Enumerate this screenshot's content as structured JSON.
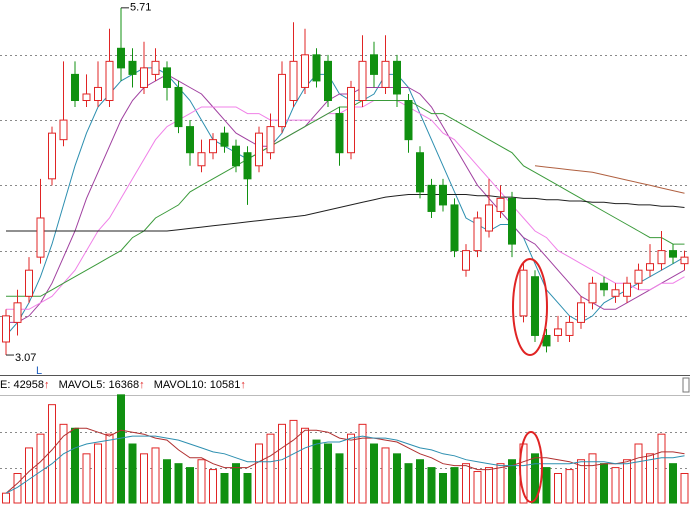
{
  "chart_data": [
    {
      "type": "candlestick",
      "up_color": "#e02424",
      "down_color": "#109010",
      "open": [
        3.15,
        3.3,
        3.5,
        3.8,
        4.4,
        4.7,
        5.2,
        5.0,
        5.0,
        5.0,
        5.4,
        5.3,
        5.1,
        5.2,
        5.25,
        5.1,
        4.8,
        4.5,
        4.6,
        4.75,
        4.65,
        4.6,
        4.5,
        4.6,
        4.8,
        5.0,
        5.1,
        5.35,
        5.3,
        4.9,
        4.6,
        5.0,
        5.35,
        5.1,
        5.3,
        5.0,
        4.6,
        4.35,
        4.35,
        4.2,
        3.7,
        3.85,
        4.0,
        4.15,
        4.25,
        3.35,
        3.65,
        3.2,
        3.2,
        3.2,
        3.3,
        3.45,
        3.6,
        3.5,
        3.5,
        3.6,
        3.7,
        3.75,
        3.85,
        3.75
      ],
      "high": [
        3.4,
        3.55,
        3.8,
        4.4,
        4.8,
        5.3,
        5.3,
        5.2,
        5.3,
        5.55,
        5.71,
        5.4,
        5.45,
        5.4,
        5.3,
        5.15,
        4.85,
        4.7,
        4.75,
        4.8,
        4.7,
        4.65,
        4.8,
        4.9,
        5.3,
        5.6,
        5.55,
        5.4,
        5.35,
        4.95,
        5.15,
        5.5,
        5.45,
        5.5,
        5.35,
        5.05,
        4.65,
        4.4,
        4.4,
        4.25,
        3.9,
        4.15,
        4.4,
        4.35,
        4.3,
        3.75,
        3.7,
        3.25,
        3.35,
        3.35,
        3.5,
        3.65,
        3.65,
        3.6,
        3.65,
        3.75,
        3.9,
        4.0,
        3.9,
        3.85
      ],
      "low": [
        3.05,
        3.2,
        3.45,
        3.75,
        4.35,
        4.65,
        4.95,
        4.95,
        4.95,
        4.95,
        5.15,
        5.1,
        5.05,
        5.15,
        5.0,
        4.75,
        4.5,
        4.45,
        4.55,
        4.6,
        4.45,
        4.2,
        4.45,
        4.55,
        4.75,
        4.95,
        5.05,
        5.1,
        4.95,
        4.5,
        4.55,
        4.95,
        5.1,
        5.05,
        4.95,
        4.6,
        4.25,
        4.1,
        4.15,
        3.8,
        3.65,
        3.8,
        3.95,
        4.1,
        3.8,
        3.3,
        3.15,
        3.07,
        3.15,
        3.15,
        3.25,
        3.4,
        3.5,
        3.45,
        3.45,
        3.55,
        3.65,
        3.7,
        3.75,
        3.7
      ],
      "close": [
        3.35,
        3.45,
        3.7,
        4.1,
        4.75,
        4.85,
        5.0,
        5.05,
        5.1,
        5.3,
        5.25,
        5.2,
        5.25,
        5.3,
        5.1,
        4.8,
        4.6,
        4.6,
        4.7,
        4.65,
        4.5,
        4.4,
        4.75,
        4.8,
        5.2,
        5.3,
        5.35,
        5.15,
        5.0,
        4.6,
        5.1,
        5.3,
        5.2,
        5.3,
        5.05,
        4.7,
        4.3,
        4.15,
        4.2,
        3.85,
        3.85,
        4.1,
        4.2,
        4.25,
        3.9,
        3.7,
        3.2,
        3.12,
        3.25,
        3.3,
        3.45,
        3.6,
        3.55,
        3.55,
        3.6,
        3.7,
        3.75,
        3.85,
        3.8,
        3.8
      ],
      "high_label": "5.71",
      "low_label": "3.07",
      "low_marker": "L",
      "series": [
        {
          "color": "#2d8fb0",
          "values": [
            3.2,
            3.3,
            3.45,
            3.65,
            3.9,
            4.2,
            4.5,
            4.75,
            4.95,
            5.05,
            5.15,
            5.2,
            5.25,
            5.25,
            5.2,
            5.1,
            5.0,
            4.85,
            4.7,
            4.65,
            4.6,
            4.55,
            4.6,
            4.65,
            4.75,
            4.95,
            5.1,
            5.2,
            5.2,
            5.05,
            5.0,
            5.0,
            5.05,
            5.2,
            5.2,
            5.1,
            4.9,
            4.7,
            4.5,
            4.3,
            4.1,
            4.05,
            4.0,
            4.05,
            4.05,
            3.95,
            3.75,
            3.55,
            3.45,
            3.35,
            3.3,
            3.35,
            3.45,
            3.5,
            3.55,
            3.6,
            3.65,
            3.7,
            3.75,
            3.8
          ]
        },
        {
          "color": "#a040a0",
          "values": [
            3.3,
            3.3,
            3.35,
            3.45,
            3.6,
            3.8,
            4.0,
            4.25,
            4.45,
            4.65,
            4.85,
            5.0,
            5.1,
            5.15,
            5.2,
            5.15,
            5.1,
            5.05,
            4.95,
            4.85,
            4.75,
            4.7,
            4.65,
            4.65,
            4.7,
            4.75,
            4.8,
            4.9,
            5.0,
            5.05,
            5.05,
            5.1,
            5.1,
            5.1,
            5.1,
            5.1,
            5.05,
            4.95,
            4.8,
            4.65,
            4.5,
            4.35,
            4.25,
            4.15,
            4.05,
            3.95,
            3.9,
            3.8,
            3.7,
            3.6,
            3.5,
            3.45,
            3.4,
            3.4,
            3.45,
            3.5,
            3.55,
            3.6,
            3.65,
            3.7
          ]
        },
        {
          "color": "#f080e8",
          "values": [
            3.4,
            3.4,
            3.4,
            3.45,
            3.5,
            3.6,
            3.7,
            3.85,
            4.0,
            4.1,
            4.25,
            4.4,
            4.55,
            4.7,
            4.8,
            4.85,
            4.9,
            4.95,
            4.95,
            4.95,
            4.95,
            4.9,
            4.9,
            4.85,
            4.85,
            4.85,
            4.85,
            4.85,
            4.9,
            4.9,
            4.95,
            4.95,
            5.0,
            5.0,
            5.0,
            4.95,
            4.9,
            4.85,
            4.75,
            4.7,
            4.6,
            4.5,
            4.4,
            4.3,
            4.2,
            4.1,
            4.0,
            3.95,
            3.85,
            3.8,
            3.75,
            3.7,
            3.65,
            3.6,
            3.6,
            3.55,
            3.55,
            3.6,
            3.6,
            3.65
          ]
        },
        {
          "color": "#3a9a3a",
          "values": [
            3.5,
            3.5,
            3.5,
            3.5,
            3.55,
            3.6,
            3.65,
            3.7,
            3.75,
            3.8,
            3.85,
            3.95,
            4.0,
            4.1,
            4.15,
            4.2,
            4.3,
            4.35,
            4.4,
            4.45,
            4.5,
            4.55,
            4.6,
            4.65,
            4.7,
            4.75,
            4.8,
            4.85,
            4.9,
            4.95,
            4.95,
            5.0,
            5.0,
            5.0,
            5.0,
            5.0,
            4.95,
            4.9,
            4.9,
            4.85,
            4.8,
            4.75,
            4.7,
            4.65,
            4.6,
            4.5,
            4.45,
            4.4,
            4.35,
            4.3,
            4.25,
            4.2,
            4.15,
            4.1,
            4.05,
            4.0,
            3.95,
            3.95,
            3.9,
            3.9
          ]
        },
        {
          "color": "#202020",
          "values": [
            4.0,
            4.0,
            4.0,
            4.0,
            4.0,
            4.0,
            4.0,
            4.0,
            4.0,
            4.0,
            4.0,
            4.0,
            4.0,
            4.0,
            4.0,
            4.01,
            4.02,
            4.03,
            4.04,
            4.05,
            4.06,
            4.07,
            4.08,
            4.09,
            4.1,
            4.11,
            4.12,
            4.14,
            4.16,
            4.18,
            4.2,
            4.22,
            4.24,
            4.26,
            4.27,
            4.28,
            4.28,
            4.28,
            4.28,
            4.28,
            4.28,
            4.27,
            4.27,
            4.26,
            4.26,
            4.25,
            4.25,
            4.24,
            4.24,
            4.23,
            4.23,
            4.22,
            4.22,
            4.21,
            4.21,
            4.2,
            4.2,
            4.19,
            4.19,
            4.18
          ]
        },
        {
          "color": "#b06040",
          "values": [
            null,
            null,
            null,
            null,
            null,
            null,
            null,
            null,
            null,
            null,
            null,
            null,
            null,
            null,
            null,
            null,
            null,
            null,
            null,
            null,
            null,
            null,
            null,
            null,
            null,
            null,
            null,
            null,
            null,
            null,
            null,
            null,
            null,
            null,
            null,
            null,
            null,
            null,
            null,
            null,
            null,
            null,
            null,
            null,
            null,
            null,
            4.5,
            4.49,
            4.48,
            4.47,
            4.46,
            4.45,
            4.43,
            4.41,
            4.39,
            4.37,
            4.35,
            4.33,
            4.31,
            4.29
          ]
        }
      ],
      "ylim": [
        2.92,
        5.77
      ],
      "yticks": [
        3.35,
        3.85,
        4.35,
        4.85,
        5.35
      ],
      "grid": true
    },
    {
      "type": "bar",
      "indicator_labels": [
        "E: 42958",
        "MAVOL5: 16368",
        "MAVOL10: 10581"
      ],
      "trend_marker": "↑",
      "trend_color": "#e02424",
      "values": [
        5000,
        15000,
        28000,
        35000,
        50000,
        40000,
        38000,
        25000,
        30000,
        35000,
        55000,
        30000,
        25000,
        28000,
        22000,
        20000,
        18000,
        22000,
        17000,
        15000,
        20000,
        15000,
        30000,
        35000,
        40000,
        42000,
        38000,
        32000,
        30000,
        25000,
        35000,
        40000,
        30000,
        28000,
        25000,
        20000,
        22000,
        18000,
        15000,
        18000,
        20000,
        16000,
        18000,
        20000,
        22000,
        30000,
        25000,
        18000,
        15000,
        17000,
        22000,
        25000,
        20000,
        18000,
        22000,
        30000,
        25000,
        35000,
        20000,
        15000
      ],
      "series": [
        {
          "color": "#b03030",
          "values": [
            5000,
            10000,
            16000,
            21000,
            27000,
            34000,
            38000,
            38000,
            36000,
            34000,
            37000,
            36000,
            35000,
            33000,
            32000,
            27000,
            23000,
            23000,
            20000,
            18000,
            18000,
            18000,
            21000,
            24000,
            28000,
            32000,
            37000,
            37000,
            36000,
            33000,
            32000,
            33000,
            33000,
            32000,
            31000,
            28000,
            25000,
            23000,
            20000,
            19000,
            19000,
            17000,
            17000,
            18000,
            19000,
            21000,
            23000,
            23000,
            22000,
            21000,
            19000,
            19000,
            20000,
            20000,
            21000,
            23000,
            24000,
            26000,
            26000,
            25000
          ]
        },
        {
          "color": "#2d8fb0",
          "values": [
            5000,
            8000,
            12000,
            16000,
            20000,
            25000,
            28000,
            30000,
            31000,
            32000,
            33000,
            34000,
            34000,
            34000,
            33000,
            32000,
            30000,
            28000,
            26000,
            25000,
            23000,
            21000,
            21000,
            21000,
            22000,
            25000,
            28000,
            30000,
            31000,
            31000,
            33000,
            34000,
            33000,
            33000,
            32000,
            30000,
            28000,
            27000,
            25000,
            24000,
            22000,
            21000,
            20000,
            19000,
            19000,
            19000,
            20000,
            20000,
            20000,
            20000,
            21000,
            21000,
            21000,
            20000,
            20000,
            21000,
            22000,
            23000,
            23000,
            24000
          ]
        }
      ],
      "ylim": [
        0,
        60000
      ],
      "yticks": [
        18000,
        36000
      ],
      "grid": true
    }
  ]
}
